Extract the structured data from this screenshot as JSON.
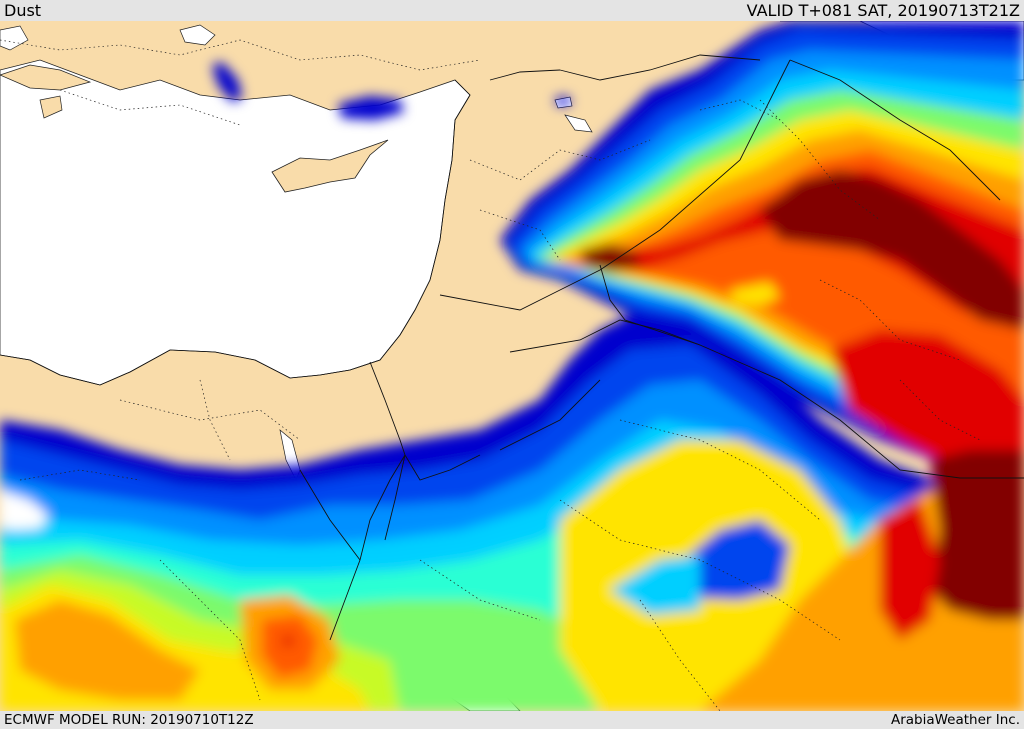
{
  "header": {
    "product": "Dust",
    "valid_time": "VALID T+081 SAT, 20190713T21Z"
  },
  "footer": {
    "model_run": "ECMWF MODEL RUN: 20190710T12Z",
    "credit": "ArabiaWeather Inc."
  },
  "colors": {
    "land": "#f9dcaa",
    "sea": "#ffffff",
    "dust_scale": [
      "#0000cd",
      "#0044ee",
      "#0090ff",
      "#00cfff",
      "#2bffd4",
      "#7cfa6c",
      "#c8fa28",
      "#ffe400",
      "#ffa000",
      "#ff5a00",
      "#e10000",
      "#820000"
    ]
  }
}
